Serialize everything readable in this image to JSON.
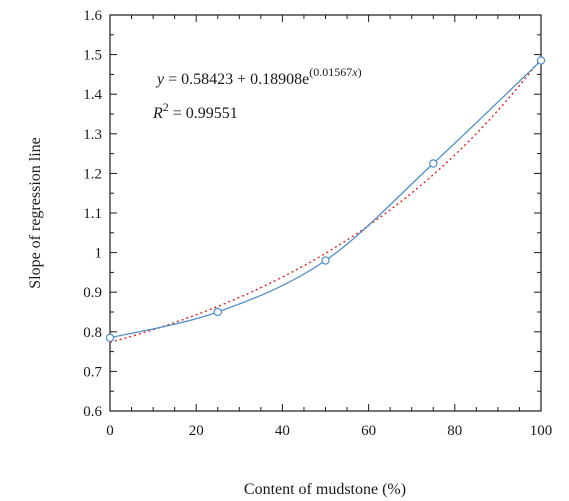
{
  "chart_data": {
    "type": "scatter",
    "xlabel": "Content of mudstone (%)",
    "ylabel": "Slope of regression line",
    "xlim": [
      0,
      100
    ],
    "ylim": [
      0.6,
      1.6
    ],
    "xticks": [
      0,
      20,
      40,
      60,
      80,
      100
    ],
    "xtick_labels": [
      "0",
      "20",
      "40",
      "60",
      "80",
      "100"
    ],
    "yticks": [
      0.6,
      0.7,
      0.8,
      0.9,
      1.0,
      1.1,
      1.2,
      1.3,
      1.4,
      1.5,
      1.6
    ],
    "ytick_labels": [
      "0.6",
      "0.7",
      "0.8",
      "0.9",
      "1",
      "1.1",
      "1.2",
      "1.3",
      "1.4",
      "1.5",
      "1.6"
    ],
    "grid": false,
    "series": [
      {
        "kind": "points",
        "marker": "open-circle",
        "color": "#4f8fc9",
        "x": [
          0,
          25,
          50,
          75,
          100
        ],
        "y": [
          0.785,
          0.85,
          0.98,
          1.225,
          1.485
        ]
      },
      {
        "kind": "smooth-line",
        "color": "#4f8fc9",
        "dash": "solid",
        "x": [
          0,
          25,
          50,
          75,
          100
        ],
        "y": [
          0.785,
          0.85,
          0.98,
          1.225,
          1.485
        ]
      },
      {
        "kind": "fit",
        "color": "#e02020",
        "dash": "dotted",
        "model": "exponential",
        "params": {
          "a": 0.58423,
          "b": 0.18908,
          "c": 0.01567
        }
      }
    ],
    "annotations": {
      "equation": {
        "y": "y",
        "eq_part": " = 0.58423 + 0.18908e",
        "exponent": "(0.01567",
        "x": "x",
        "close": ")"
      },
      "r2": {
        "r": "R",
        "sup": "2",
        "value": " = 0.99551"
      }
    }
  }
}
